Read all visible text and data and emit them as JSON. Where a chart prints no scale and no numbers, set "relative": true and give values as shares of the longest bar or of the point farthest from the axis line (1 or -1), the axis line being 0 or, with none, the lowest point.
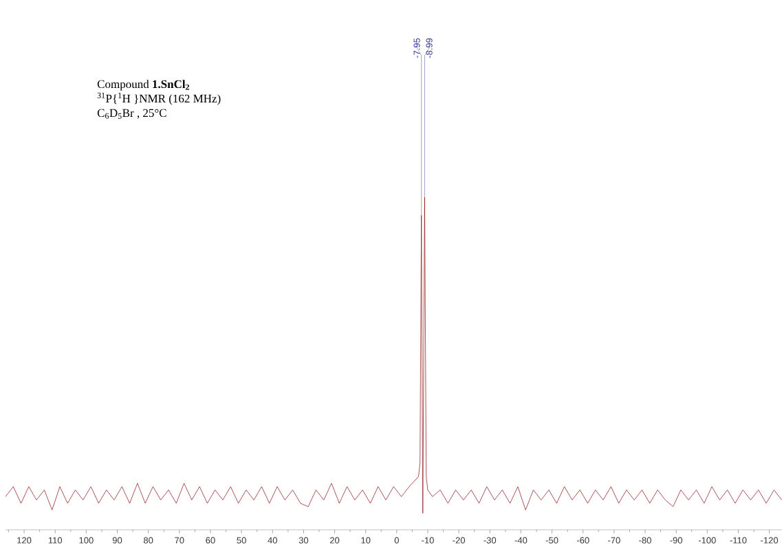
{
  "chart_data": {
    "type": "line",
    "relative": true,
    "title": "Compound **1.SnCl$_{2}$**",
    "subtitle": "$^{31}$P{$^{1}$H }NMR (162 MHz)",
    "annotations": [
      "C$_{6}$D$_{5}$Br , 25°C",
      {
        "text": "-7.95",
        "x": -7.95,
        "y": 0.946
      },
      {
        "text": "-8.99",
        "x": -8.99,
        "y": 1
      }
    ],
    "xlim": [
      126,
      -124
    ],
    "xticks": [
      120,
      110,
      100,
      90,
      80,
      70,
      60,
      50,
      40,
      30,
      20,
      10,
      0,
      -10,
      -20,
      -30,
      -40,
      -50,
      -60,
      -70,
      -80,
      -90,
      -100,
      -110,
      -120,
      {
        "value": 125,
        "label": null
      },
      {
        "value": 115,
        "label": null
      },
      {
        "value": 105,
        "label": null
      },
      {
        "value": 95,
        "label": null
      },
      {
        "value": 85,
        "label": null
      },
      {
        "value": 75,
        "label": null
      },
      {
        "value": 65,
        "label": null
      },
      {
        "value": 55,
        "label": null
      },
      {
        "value": 45,
        "label": null
      },
      {
        "value": 35,
        "label": null
      },
      {
        "value": 25,
        "label": null
      },
      {
        "value": 15,
        "label": null
      },
      {
        "value": 5,
        "label": null
      },
      {
        "value": -5,
        "label": null
      },
      {
        "value": -15,
        "label": null
      },
      {
        "value": -25,
        "label": null
      },
      {
        "value": -35,
        "label": null
      },
      {
        "value": -45,
        "label": null
      },
      {
        "value": -55,
        "label": null
      },
      {
        "value": -65,
        "label": null
      },
      {
        "value": -75,
        "label": null
      },
      {
        "value": -85,
        "label": null
      },
      {
        "value": -95,
        "label": null
      },
      {
        "value": -105,
        "label": null
      },
      {
        "value": -115,
        "label": null
      }
    ],
    "x": [
      126,
      123.5,
      121,
      118.5,
      116,
      113.5,
      111,
      108.5,
      106,
      103.5,
      101,
      98.5,
      96,
      93.5,
      91,
      88.5,
      86,
      83.5,
      81,
      78.5,
      76,
      73.5,
      71,
      68.5,
      66,
      63.5,
      61,
      58.5,
      56,
      53.5,
      51,
      48.5,
      46,
      43.5,
      41,
      38.5,
      36,
      33.5,
      31,
      28.5,
      26,
      23.5,
      21,
      18.5,
      16,
      13.5,
      11,
      8.5,
      6,
      3.5,
      1,
      -1.5,
      -4,
      -6,
      -7,
      -7.5,
      -7.95,
      -8.4,
      -8.99,
      -9.5,
      -10,
      -11.5,
      -14,
      -16.5,
      -19,
      -21.5,
      -24,
      -26.5,
      -29,
      -31.5,
      -34,
      -36.5,
      -39,
      -41.5,
      -44,
      -46.5,
      -49,
      -51.5,
      -54,
      -56.5,
      -59,
      -61.5,
      -64,
      -66.5,
      -69,
      -71.5,
      -74,
      -76.5,
      -79,
      -81.5,
      -84,
      -86.5,
      -89,
      -91.5,
      -94,
      -96.5,
      -99,
      -101.5,
      -104,
      -106.5,
      -109,
      -111.5,
      -114,
      -116.5,
      -119,
      -121.5,
      -124
    ],
    "series": [
      {
        "color": "#8b0a0a",
        "values": [
          0.1,
          0.13,
          0.08,
          0.13,
          0.09,
          0.12,
          0.06,
          0.13,
          0.08,
          0.12,
          0.09,
          0.13,
          0.08,
          0.12,
          0.09,
          0.13,
          0.08,
          0.14,
          0.08,
          0.13,
          0.09,
          0.12,
          0.08,
          0.14,
          0.09,
          0.13,
          0.08,
          0.12,
          0.09,
          0.13,
          0.08,
          0.12,
          0.09,
          0.13,
          0.08,
          0.13,
          0.09,
          0.12,
          0.08,
          0.07,
          0.12,
          0.09,
          0.14,
          0.08,
          0.13,
          0.09,
          0.12,
          0.08,
          0.13,
          0.09,
          0.13,
          0.1,
          0.13,
          0.15,
          0.16,
          0.2,
          0.946,
          0.05,
          1,
          0.16,
          0.12,
          0.1,
          0.12,
          0.08,
          0.12,
          0.09,
          0.12,
          0.08,
          0.13,
          0.09,
          0.12,
          0.08,
          0.13,
          0.06,
          0.12,
          0.09,
          0.12,
          0.08,
          0.13,
          0.09,
          0.12,
          0.08,
          0.12,
          0.09,
          0.13,
          0.08,
          0.12,
          0.09,
          0.12,
          0.08,
          0.12,
          0.09,
          0.07,
          0.12,
          0.09,
          0.12,
          0.08,
          0.13,
          0.09,
          0.12,
          0.08,
          0.12,
          0.09,
          0.12,
          0.08,
          0.12,
          0.09
        ]
      }
    ]
  }
}
